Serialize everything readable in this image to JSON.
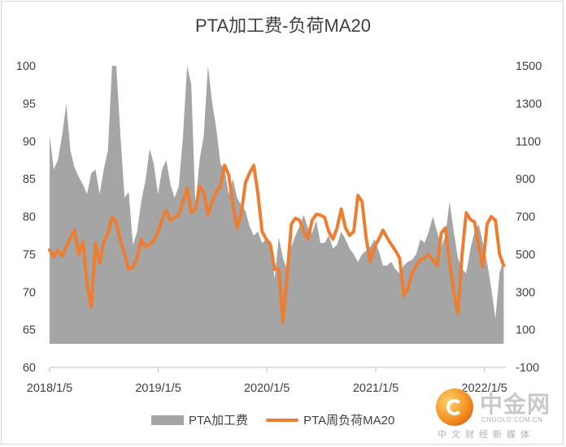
{
  "chart_data": {
    "type": "area+line",
    "title": "PTA加工费-负荷MA20",
    "x_tick_labels": [
      "2018/1/5",
      "2019/1/5",
      "2020/1/5",
      "2021/1/5",
      "2022/1/5"
    ],
    "y_left": {
      "ylim": [
        60,
        100
      ],
      "ticks": [
        "60",
        "65",
        "70",
        "75",
        "80",
        "85",
        "90",
        "95",
        "100"
      ]
    },
    "y_right": {
      "ylim": [
        -100,
        1500
      ],
      "ticks": [
        "-100",
        "100",
        "300",
        "500",
        "700",
        "900",
        "1100",
        "1300",
        "1500"
      ]
    },
    "series": [
      {
        "name": "PTA加工费",
        "kind": "area",
        "axis": "right",
        "color": "#a5a5a5",
        "points": [
          [
            "2018/1/5",
            1130
          ],
          [
            "2018/1/19",
            950
          ],
          [
            "2018/2/2",
            1000
          ],
          [
            "2018/2/16",
            1130
          ],
          [
            "2018/3/2",
            1300
          ],
          [
            "2018/3/16",
            1050
          ],
          [
            "2018/3/30",
            960
          ],
          [
            "2018/4/13",
            910
          ],
          [
            "2018/4/27",
            870
          ],
          [
            "2018/5/11",
            820
          ],
          [
            "2018/5/25",
            930
          ],
          [
            "2018/6/8",
            950
          ],
          [
            "2018/6/22",
            820
          ],
          [
            "2018/7/6",
            950
          ],
          [
            "2018/7/20",
            1050
          ],
          [
            "2018/8/3",
            1530
          ],
          [
            "2018/8/17",
            1570
          ],
          [
            "2018/8/31",
            1130
          ],
          [
            "2018/9/14",
            800
          ],
          [
            "2018/9/28",
            830
          ],
          [
            "2018/10/12",
            550
          ],
          [
            "2018/10/26",
            620
          ],
          [
            "2018/11/9",
            780
          ],
          [
            "2018/11/23",
            890
          ],
          [
            "2018/12/7",
            1060
          ],
          [
            "2018/12/21",
            980
          ],
          [
            "2019/1/4",
            820
          ],
          [
            "2019/1/18",
            950
          ],
          [
            "2019/2/1",
            1000
          ],
          [
            "2019/2/15",
            870
          ],
          [
            "2019/3/1",
            800
          ],
          [
            "2019/3/15",
            860
          ],
          [
            "2019/3/29",
            1120
          ],
          [
            "2019/4/12",
            1530
          ],
          [
            "2019/4/26",
            1400
          ],
          [
            "2019/5/10",
            760
          ],
          [
            "2019/5/24",
            1000
          ],
          [
            "2019/6/7",
            1130
          ],
          [
            "2019/6/21",
            1540
          ],
          [
            "2019/7/5",
            1310
          ],
          [
            "2019/7/19",
            1170
          ],
          [
            "2019/8/2",
            980
          ],
          [
            "2019/8/16",
            950
          ],
          [
            "2019/8/30",
            820
          ],
          [
            "2019/9/13",
            900
          ],
          [
            "2019/9/27",
            800
          ],
          [
            "2019/10/11",
            760
          ],
          [
            "2019/10/25",
            730
          ],
          [
            "2019/11/8",
            650
          ],
          [
            "2019/11/22",
            600
          ],
          [
            "2019/12/6",
            620
          ],
          [
            "2019/12/20",
            560
          ],
          [
            "2020/1/3",
            580
          ],
          [
            "2020/1/17",
            570
          ],
          [
            "2020/1/31",
            370
          ],
          [
            "2020/2/14",
            590
          ],
          [
            "2020/2/28",
            480
          ],
          [
            "2020/3/13",
            420
          ],
          [
            "2020/3/27",
            540
          ],
          [
            "2020/4/10",
            600
          ],
          [
            "2020/4/24",
            650
          ],
          [
            "2020/5/8",
            710
          ],
          [
            "2020/5/22",
            640
          ],
          [
            "2020/6/5",
            610
          ],
          [
            "2020/6/19",
            680
          ],
          [
            "2020/7/3",
            560
          ],
          [
            "2020/7/17",
            560
          ],
          [
            "2020/7/31",
            600
          ],
          [
            "2020/8/14",
            530
          ],
          [
            "2020/8/28",
            550
          ],
          [
            "2020/9/11",
            620
          ],
          [
            "2020/9/25",
            580
          ],
          [
            "2020/10/9",
            530
          ],
          [
            "2020/10/23",
            500
          ],
          [
            "2020/11/6",
            460
          ],
          [
            "2020/11/20",
            500
          ],
          [
            "2020/12/4",
            520
          ],
          [
            "2020/12/18",
            540
          ],
          [
            "2021/1/1",
            580
          ],
          [
            "2021/1/15",
            520
          ],
          [
            "2021/1/29",
            440
          ],
          [
            "2021/2/12",
            440
          ],
          [
            "2021/2/26",
            460
          ],
          [
            "2021/3/12",
            420
          ],
          [
            "2021/3/26",
            400
          ],
          [
            "2021/4/9",
            440
          ],
          [
            "2021/4/23",
            460
          ],
          [
            "2021/5/7",
            470
          ],
          [
            "2021/5/21",
            500
          ],
          [
            "2021/6/4",
            580
          ],
          [
            "2021/6/18",
            560
          ],
          [
            "2021/7/2",
            620
          ],
          [
            "2021/7/16",
            700
          ],
          [
            "2021/7/30",
            620
          ],
          [
            "2021/8/13",
            540
          ],
          [
            "2021/8/27",
            600
          ],
          [
            "2021/9/10",
            780
          ],
          [
            "2021/9/24",
            620
          ],
          [
            "2021/10/8",
            480
          ],
          [
            "2021/10/22",
            420
          ],
          [
            "2021/11/5",
            400
          ],
          [
            "2021/11/19",
            530
          ],
          [
            "2021/12/3",
            620
          ],
          [
            "2021/12/17",
            660
          ],
          [
            "2021/12/31",
            560
          ],
          [
            "2022/1/14",
            460
          ],
          [
            "2022/1/28",
            320
          ],
          [
            "2022/2/11",
            160
          ],
          [
            "2022/2/25",
            400
          ],
          [
            "2022/3/11",
            480
          ]
        ]
      },
      {
        "name": "PTA周负荷MA20",
        "kind": "line",
        "axis": "left",
        "color": "#ed7d31",
        "points": [
          [
            "2018/1/5",
            75.6
          ],
          [
            "2018/1/19",
            74.7
          ],
          [
            "2018/2/2",
            75.5
          ],
          [
            "2018/2/16",
            74.8
          ],
          [
            "2018/3/2",
            76.0
          ],
          [
            "2018/3/16",
            77.2
          ],
          [
            "2018/3/30",
            78.2
          ],
          [
            "2018/4/13",
            75.0
          ],
          [
            "2018/4/27",
            76.7
          ],
          [
            "2018/5/11",
            71.0
          ],
          [
            "2018/5/25",
            68.0
          ],
          [
            "2018/6/8",
            76.5
          ],
          [
            "2018/6/22",
            73.8
          ],
          [
            "2018/7/6",
            76.7
          ],
          [
            "2018/7/20",
            77.8
          ],
          [
            "2018/8/3",
            80.0
          ],
          [
            "2018/8/17",
            79.2
          ],
          [
            "2018/8/31",
            76.8
          ],
          [
            "2018/9/14",
            75.0
          ],
          [
            "2018/9/28",
            73.0
          ],
          [
            "2018/10/12",
            73.3
          ],
          [
            "2018/10/26",
            74.5
          ],
          [
            "2018/11/9",
            77.0
          ],
          [
            "2018/11/23",
            76.0
          ],
          [
            "2018/12/7",
            76.3
          ],
          [
            "2018/12/21",
            76.8
          ],
          [
            "2019/1/4",
            78.0
          ],
          [
            "2019/1/18",
            79.6
          ],
          [
            "2019/2/1",
            80.8
          ],
          [
            "2019/2/15",
            79.5
          ],
          [
            "2019/3/1",
            79.9
          ],
          [
            "2019/3/15",
            80.2
          ],
          [
            "2019/3/29",
            82.0
          ],
          [
            "2019/4/12",
            83.8
          ],
          [
            "2019/4/26",
            80.5
          ],
          [
            "2019/5/10",
            81.0
          ],
          [
            "2019/5/24",
            84.0
          ],
          [
            "2019/6/7",
            83.2
          ],
          [
            "2019/6/21",
            80.2
          ],
          [
            "2019/7/5",
            82.0
          ],
          [
            "2019/7/19",
            83.3
          ],
          [
            "2019/8/2",
            84.0
          ],
          [
            "2019/8/16",
            86.8
          ],
          [
            "2019/8/30",
            85.5
          ],
          [
            "2019/9/13",
            81.6
          ],
          [
            "2019/9/27",
            78.5
          ],
          [
            "2019/10/11",
            80.4
          ],
          [
            "2019/10/25",
            84.5
          ],
          [
            "2019/11/8",
            85.8
          ],
          [
            "2019/11/22",
            86.8
          ],
          [
            "2019/12/6",
            83.0
          ],
          [
            "2019/12/20",
            78.0
          ],
          [
            "2020/1/3",
            77.0
          ],
          [
            "2020/1/17",
            76.3
          ],
          [
            "2020/1/31",
            73.0
          ],
          [
            "2020/2/14",
            73.0
          ],
          [
            "2020/2/28",
            66.0
          ],
          [
            "2020/3/13",
            72.0
          ],
          [
            "2020/3/27",
            79.0
          ],
          [
            "2020/4/10",
            79.8
          ],
          [
            "2020/4/24",
            79.5
          ],
          [
            "2020/5/8",
            78.0
          ],
          [
            "2020/5/22",
            77.0
          ],
          [
            "2020/6/5",
            79.5
          ],
          [
            "2020/6/19",
            80.3
          ],
          [
            "2020/7/3",
            80.2
          ],
          [
            "2020/7/17",
            79.9
          ],
          [
            "2020/7/31",
            78.0
          ],
          [
            "2020/8/14",
            77.0
          ],
          [
            "2020/8/28",
            78.5
          ],
          [
            "2020/9/11",
            81.0
          ],
          [
            "2020/9/25",
            78.5
          ],
          [
            "2020/10/9",
            77.5
          ],
          [
            "2020/10/23",
            78.0
          ],
          [
            "2020/11/6",
            82.8
          ],
          [
            "2020/11/20",
            82.0
          ],
          [
            "2020/12/4",
            77.0
          ],
          [
            "2020/12/18",
            74.0
          ],
          [
            "2021/1/1",
            76.0
          ],
          [
            "2021/1/15",
            77.0
          ],
          [
            "2021/1/29",
            78.2
          ],
          [
            "2021/2/12",
            77.2
          ],
          [
            "2021/2/26",
            76.3
          ],
          [
            "2021/3/12",
            75.5
          ],
          [
            "2021/3/26",
            74.5
          ],
          [
            "2021/4/9",
            69.5
          ],
          [
            "2021/4/23",
            70.5
          ],
          [
            "2021/5/7",
            72.5
          ],
          [
            "2021/5/21",
            73.5
          ],
          [
            "2021/6/4",
            74.3
          ],
          [
            "2021/6/18",
            74.5
          ],
          [
            "2021/7/2",
            75.0
          ],
          [
            "2021/7/16",
            74.2
          ],
          [
            "2021/7/30",
            73.5
          ],
          [
            "2021/8/13",
            77.8
          ],
          [
            "2021/8/27",
            78.5
          ],
          [
            "2021/9/10",
            74.0
          ],
          [
            "2021/9/24",
            70.0
          ],
          [
            "2021/10/8",
            67.2
          ],
          [
            "2021/10/22",
            75.0
          ],
          [
            "2021/11/5",
            80.5
          ],
          [
            "2021/11/19",
            79.6
          ],
          [
            "2021/12/3",
            79.3
          ],
          [
            "2021/12/17",
            76.0
          ],
          [
            "2021/12/31",
            73.3
          ],
          [
            "2022/1/14",
            79.0
          ],
          [
            "2022/1/28",
            80.0
          ],
          [
            "2022/2/11",
            79.5
          ],
          [
            "2022/2/25",
            75.0
          ],
          [
            "2022/3/11",
            73.5
          ]
        ]
      }
    ],
    "legend_position": "bottom"
  },
  "watermark": {
    "name": "中金网",
    "domain": "CNGOLD.COM.CN",
    "tagline": "中文财经新媒体"
  }
}
